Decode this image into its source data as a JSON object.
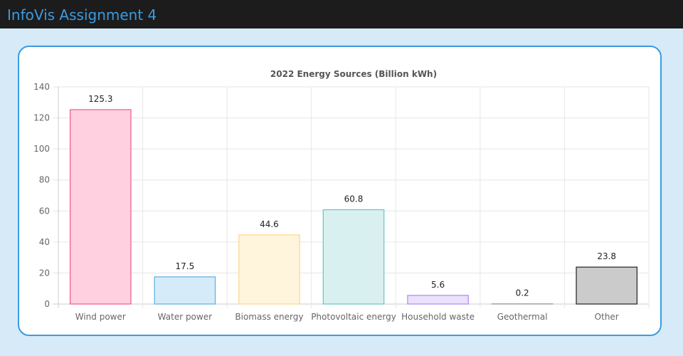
{
  "header": {
    "title": "InfoVis Assignment 4"
  },
  "chart_data": {
    "type": "bar",
    "title": "2022 Energy Sources (Billion kWh)",
    "xlabel": "",
    "ylabel": "",
    "categories": [
      "Wind power",
      "Water power",
      "Biomass energy",
      "Photovoltaic energy",
      "Household waste",
      "Geothermal",
      "Other"
    ],
    "values": [
      125.3,
      17.5,
      44.6,
      60.8,
      5.6,
      0.2,
      23.8
    ],
    "value_labels": [
      "125.3",
      "17.5",
      "44.6",
      "60.8",
      "5.6",
      "0.2",
      "23.8"
    ],
    "ylim": [
      0,
      140
    ],
    "yticks": [
      "0",
      "20",
      "40",
      "60",
      "80",
      "100",
      "120",
      "140"
    ],
    "grid": true,
    "legend": "none",
    "fill_colors": [
      "#ffd1e0",
      "#d6ebf9",
      "#fff4dc",
      "#d9f0f0",
      "#ebe0fd",
      "#ececec",
      "#cbcbcb"
    ],
    "border_colors": [
      "#ea5c8a",
      "#5aaee3",
      "#fbd88e",
      "#64c4c4",
      "#a98af3",
      "#aaaaaa",
      "#222222"
    ]
  }
}
